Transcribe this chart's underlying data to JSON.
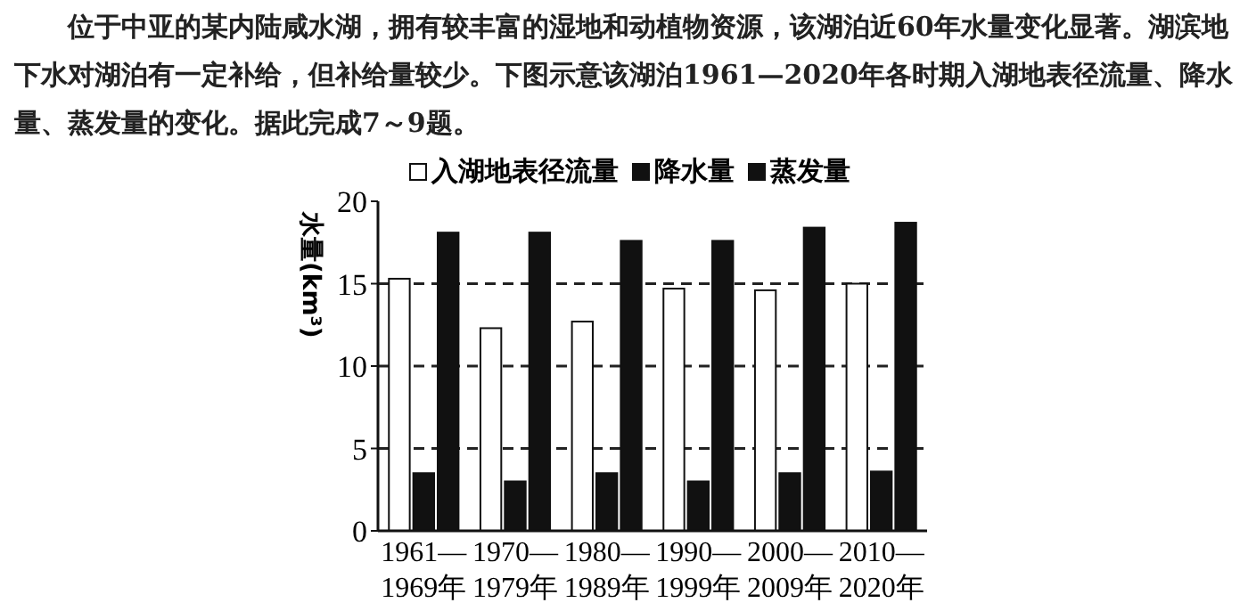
{
  "chart_data": {
    "type": "bar",
    "title": "位于中亚的某内陆咸水湖，拥有较丰富的湿地和动植物资源，该湖泊近60年水量变化显著。湖滨地下水对湖泊有一定补给，但补给量较少。下图示意该湖泊1961—2020年各时期入湖地表径流量、降水量、蒸发量的变化。据此完成7～9题。",
    "ylabel": "水量(km³)",
    "categories": [
      "1961—\n1969年",
      "1970—\n1979年",
      "1980—\n1989年",
      "1990—\n1999年",
      "2000—\n2009年",
      "2010—\n2020年"
    ],
    "series": [
      {
        "name": "入湖地表径流量",
        "color": "#ffffff",
        "values": [
          15.3,
          12.3,
          12.7,
          14.7,
          14.6,
          15.0
        ]
      },
      {
        "name": "降水量",
        "color": "#111111",
        "values": [
          3.5,
          3.0,
          3.5,
          3.0,
          3.5,
          3.6
        ]
      },
      {
        "name": "蒸发量",
        "color": "#111111",
        "values": [
          18.1,
          18.1,
          17.6,
          17.6,
          18.4,
          18.7
        ]
      }
    ],
    "ylim": [
      0,
      20
    ],
    "yticks": [
      0,
      5,
      10,
      15,
      20
    ],
    "grid": "y",
    "legend": "top"
  }
}
